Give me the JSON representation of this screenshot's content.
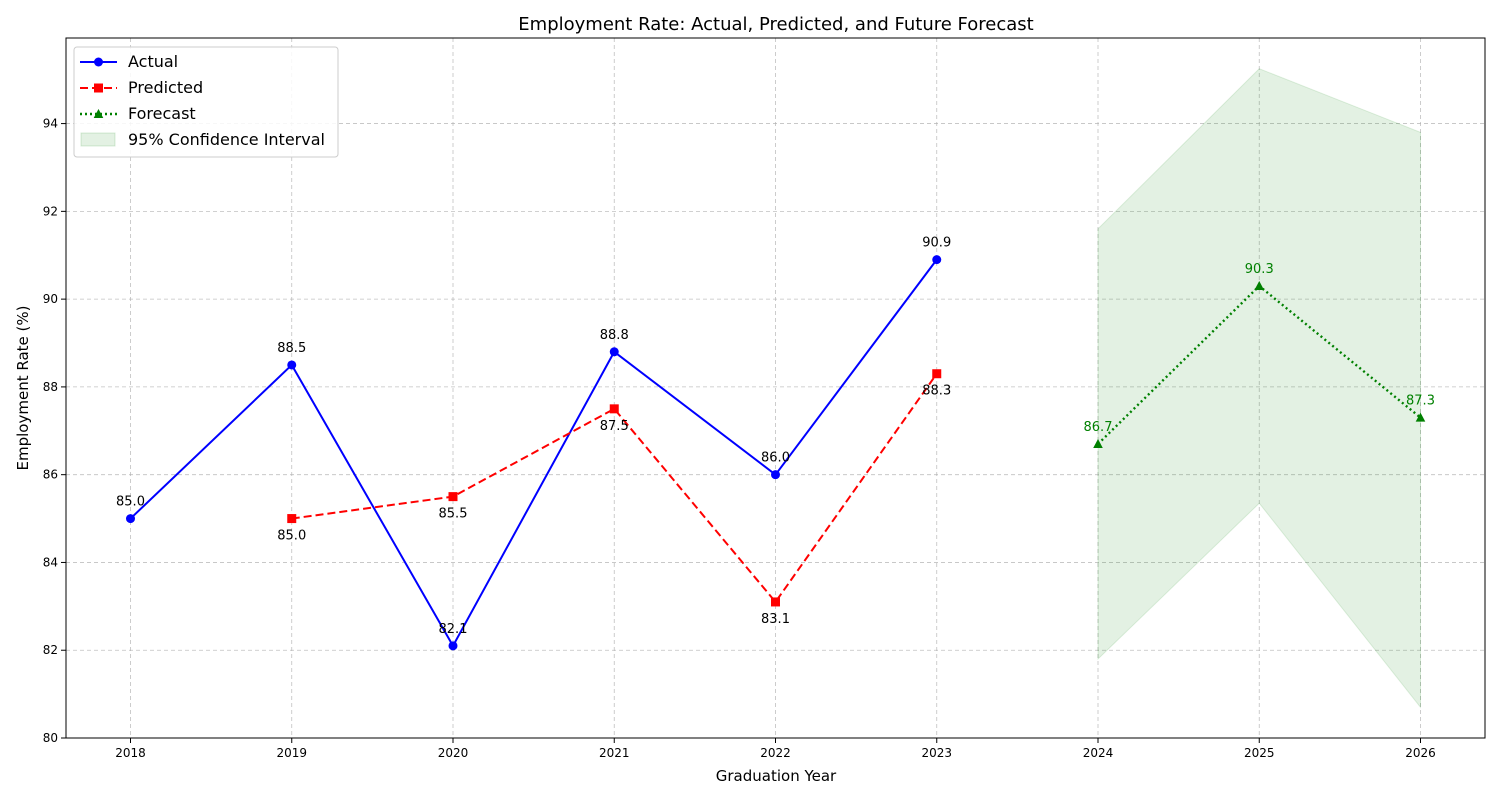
{
  "chart_data": {
    "type": "line",
    "title": "Employment Rate: Actual, Predicted, and Future Forecast",
    "xlabel": "Graduation Year",
    "ylabel": "Employment Rate (%)",
    "xlim": [
      2017.6,
      2026.4
    ],
    "ylim": [
      80,
      95.95
    ],
    "x_ticks": [
      "2018",
      "2019",
      "2020",
      "2021",
      "2022",
      "2023",
      "2024",
      "2025",
      "2026"
    ],
    "y_ticks": [
      "80",
      "82",
      "84",
      "86",
      "88",
      "90",
      "92",
      "94"
    ],
    "grid": true,
    "legend_position": "top-left",
    "series": [
      {
        "name": "Actual",
        "color": "#0000ff",
        "line_style": "solid",
        "marker": "circle",
        "x": [
          2018,
          2019,
          2020,
          2021,
          2022,
          2023
        ],
        "values": [
          85.0,
          88.5,
          82.1,
          88.8,
          86.0,
          90.9
        ],
        "labels": [
          "85.0",
          "88.5",
          "82.1",
          "88.8",
          "86.0",
          "90.9"
        ],
        "label_position": "above"
      },
      {
        "name": "Predicted",
        "color": "#ff0000",
        "line_style": "dashed",
        "marker": "square",
        "x": [
          2019,
          2020,
          2021,
          2022,
          2023
        ],
        "values": [
          85.0,
          85.5,
          87.5,
          83.1,
          88.3
        ],
        "labels": [
          "85.0",
          "85.5",
          "87.5",
          "83.1",
          "88.3"
        ],
        "label_position": "below"
      },
      {
        "name": "Forecast",
        "color": "#008000",
        "line_style": "dotted",
        "marker": "triangle",
        "x": [
          2024,
          2025,
          2026
        ],
        "values": [
          86.7,
          90.3,
          87.3
        ],
        "labels": [
          "86.7",
          "90.3",
          "87.3"
        ],
        "label_position": "above"
      }
    ],
    "confidence_interval": {
      "name": "95% Confidence Interval",
      "color": "#008000",
      "x": [
        2024,
        2025,
        2026
      ],
      "lower": [
        81.8,
        85.35,
        80.7
      ],
      "upper": [
        91.6,
        95.25,
        93.8
      ]
    }
  }
}
